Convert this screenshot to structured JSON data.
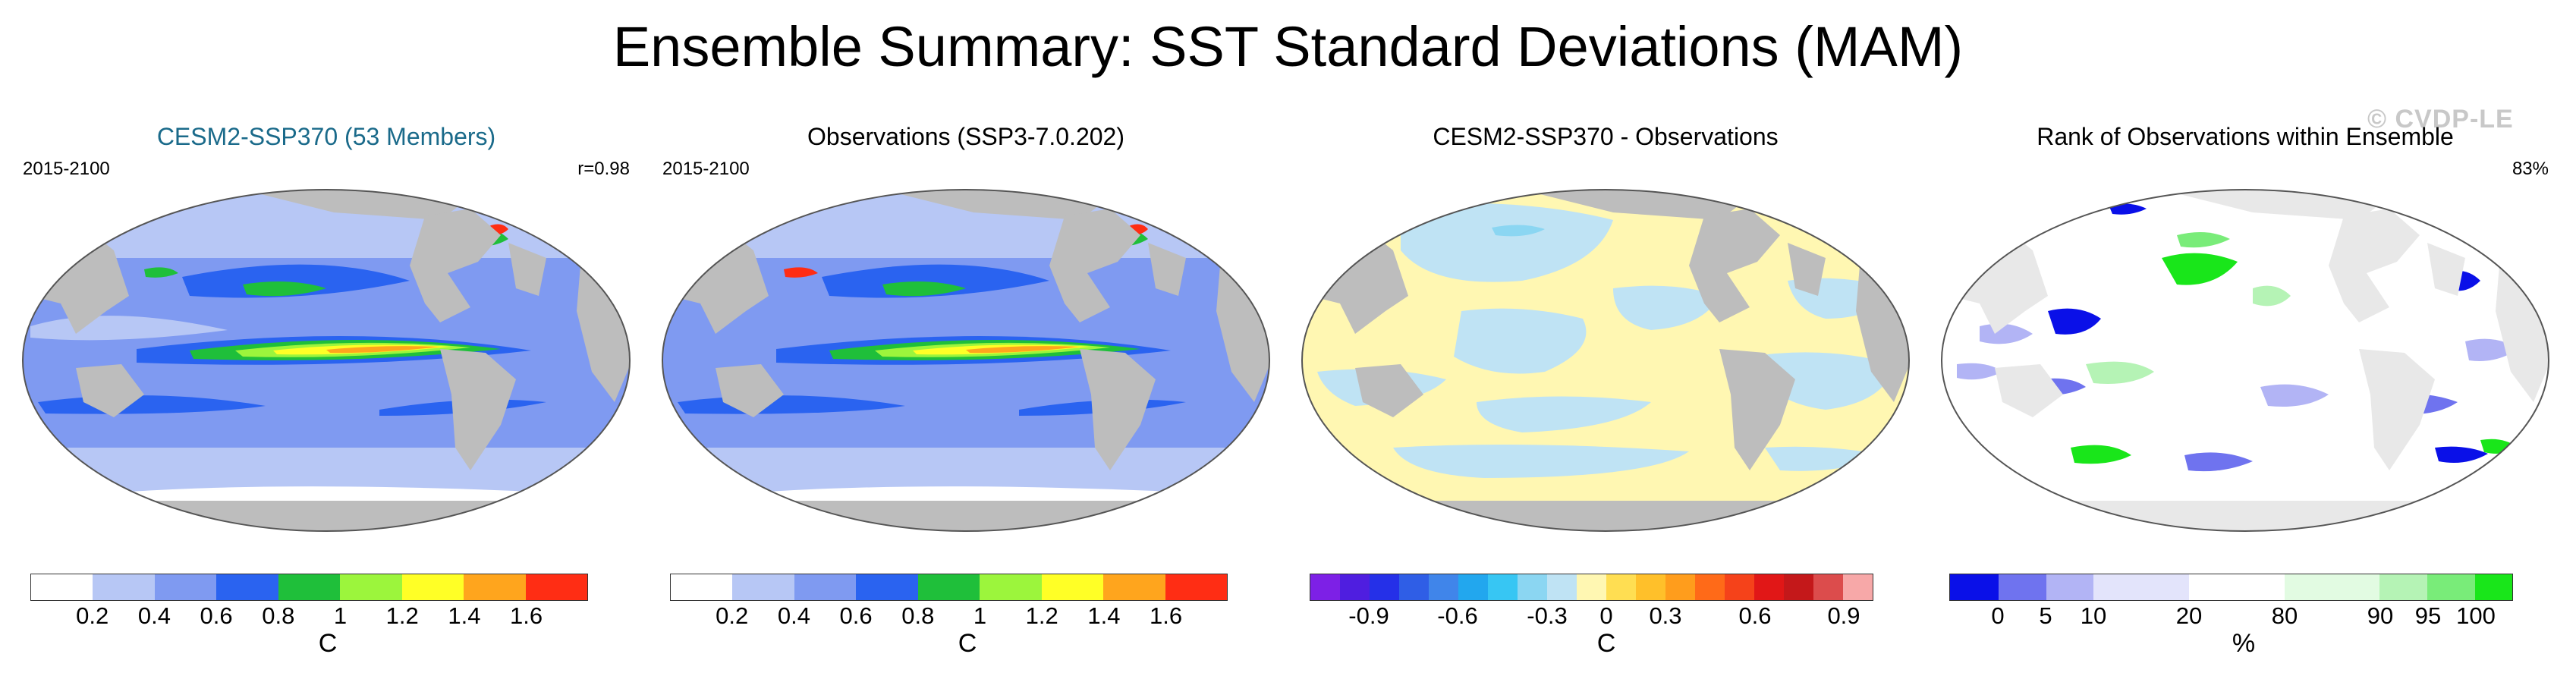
{
  "title": "Ensemble Summary: SST Standard Deviations (MAM)",
  "watermark": "© CVDP-LE",
  "panels": [
    {
      "title": "CESM2-SSP370 (53 Members)",
      "left_label": "2015-2100",
      "right_label": "r=0.98",
      "colorbar": {
        "colors": [
          "#ffffff",
          "#b7c7f5",
          "#7f9af1",
          "#2a63f0",
          "#1fbf3a",
          "#9cf53c",
          "#ffff26",
          "#ffa51d",
          "#ff2d14"
        ],
        "ticks": [
          "0.2",
          "0.4",
          "0.6",
          "0.8",
          "1",
          "1.2",
          "1.4",
          "1.6"
        ],
        "units": "C"
      }
    },
    {
      "title": "Observations (SSP3-7.0.202)",
      "left_label": "2015-2100",
      "right_label": "",
      "colorbar": {
        "colors": [
          "#ffffff",
          "#b7c7f5",
          "#7f9af1",
          "#2a63f0",
          "#1fbf3a",
          "#9cf53c",
          "#ffff26",
          "#ffa51d",
          "#ff2d14"
        ],
        "ticks": [
          "0.2",
          "0.4",
          "0.6",
          "0.8",
          "1",
          "1.2",
          "1.4",
          "1.6"
        ],
        "units": "C"
      }
    },
    {
      "title": "CESM2-SSP370 - Observations",
      "left_label": "",
      "right_label": "",
      "colorbar": {
        "colors": [
          "#7d20e6",
          "#4f1ee0",
          "#2530e8",
          "#2f5ee6",
          "#4085ea",
          "#22a7ee",
          "#37c6f3",
          "#8bd6f2",
          "#bfe3f4",
          "#fff7b2",
          "#ffde52",
          "#ffc02a",
          "#ff9d1c",
          "#ff6a18",
          "#f5421a",
          "#e11717",
          "#c4181a",
          "#dc4c4c",
          "#f7a8a8"
        ],
        "ticks": [
          "-0.9",
          "-0.6",
          "-0.3",
          "0",
          "0.3",
          "0.6",
          "0.9"
        ],
        "units": "C"
      }
    },
    {
      "title": "Rank of Observations within Ensemble",
      "left_label": "",
      "right_label": "83%",
      "colorbar": {
        "colors": [
          "#0a10e8",
          "#6f73ef",
          "#b2b4f5",
          "#e3e4fb",
          "#ffffff",
          "#e2fbe2",
          "#b5f3b5",
          "#79ec79",
          "#19e61a"
        ],
        "ticks": [
          "0",
          "5",
          "10",
          "20",
          "80",
          "90",
          "95",
          "100"
        ],
        "units": "%"
      }
    }
  ]
}
